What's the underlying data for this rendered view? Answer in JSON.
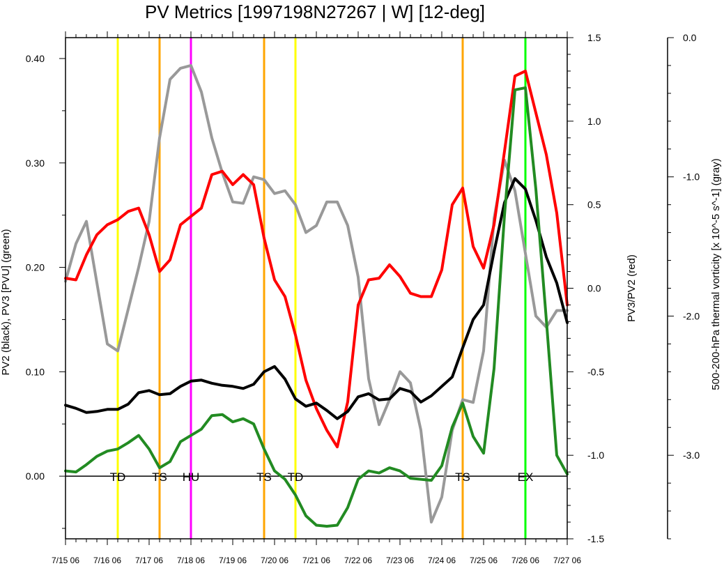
{
  "chart_data": {
    "type": "line",
    "title": "PV Metrics [1997198N27267 | W] [12-deg]",
    "x_tick_labels": [
      "7/15 06",
      "7/16 06",
      "7/17 06",
      "7/18 06",
      "7/19 06",
      "7/20 06",
      "7/21 06",
      "7/22 06",
      "7/23 06",
      "7/24 06",
      "7/25 06",
      "7/26 06",
      "7/27 06"
    ],
    "x_unit": "days from 7/15 06",
    "xlim": [
      0,
      12
    ],
    "axes": {
      "left": {
        "label": "PV2 (black), PV3 [PVU] (green)",
        "ylim": [
          -0.06,
          0.42
        ],
        "tick_values": [
          0.0,
          0.1,
          0.2,
          0.3,
          0.4
        ],
        "tick_labels": [
          "0.00",
          "0.10",
          "0.20",
          "0.30",
          "0.40"
        ]
      },
      "right": {
        "label": "PV3/PV2 (red)",
        "ylim": [
          -1.5,
          1.5
        ],
        "tick_values": [
          -1.5,
          -1.0,
          -0.5,
          0.0,
          0.5,
          1.0,
          1.5
        ],
        "tick_labels": [
          "-1.5",
          "-1.0",
          "-0.5",
          "0.0",
          "0.5",
          "1.0",
          "1.5"
        ]
      },
      "far_right": {
        "label": "500-200-hPa thermal vorticity [x 10^-5 s^-1] (gray)",
        "ylim": [
          -3.6,
          0.0
        ],
        "tick_values": [
          0.0,
          -1.0,
          -2.0,
          -3.0
        ],
        "tick_labels": [
          "0.0",
          "-1.0",
          "-2.0",
          "-3.0"
        ]
      }
    },
    "grid": false,
    "series": [
      {
        "color": "#999999",
        "axis": "far_right",
        "x": [
          0,
          0.25,
          0.5,
          1,
          1.25,
          1.5,
          1.75,
          2,
          2.25,
          2.5,
          2.75,
          3,
          3.25,
          3.5,
          3.75,
          4,
          4.25,
          4.5,
          4.75,
          5,
          5.25,
          5.5,
          5.75,
          6,
          6.25,
          6.5,
          6.75,
          7,
          7.25,
          7.5,
          7.75,
          8,
          8.25,
          8.5,
          8.75,
          9,
          9.25,
          9.5,
          9.75,
          10,
          10.25,
          10.5,
          10.75,
          11,
          11.25,
          11.5,
          11.75,
          12
        ],
        "values": [
          -1.75,
          -1.48,
          -1.32,
          -2.2,
          -2.25,
          -1.95,
          -1.65,
          -1.32,
          -0.72,
          -0.3,
          -0.22,
          -0.2,
          -0.39,
          -0.72,
          -0.97,
          -1.18,
          -1.19,
          -1.0,
          -1.02,
          -1.12,
          -1.1,
          -1.2,
          -1.4,
          -1.35,
          -1.18,
          -1.18,
          -1.35,
          -1.72,
          -2.45,
          -2.78,
          -2.6,
          -2.4,
          -2.48,
          -2.82,
          -3.48,
          -3.3,
          -2.82,
          -2.6,
          -2.62,
          -2.25,
          -1.3,
          -0.88,
          -1.1,
          -1.55,
          -2.0,
          -2.08,
          -1.96,
          -1.96
        ]
      },
      {
        "color": "#ff0000",
        "axis": "right",
        "x": [
          0,
          0.25,
          0.5,
          0.75,
          1,
          1.25,
          1.5,
          1.75,
          2,
          2.25,
          2.5,
          2.75,
          3,
          3.25,
          3.5,
          3.75,
          4,
          4.25,
          4.5,
          4.75,
          5,
          5.25,
          5.5,
          5.75,
          6,
          6.25,
          6.5,
          6.75,
          7,
          7.25,
          7.5,
          7.75,
          8,
          8.25,
          8.5,
          8.75,
          9,
          9.25,
          9.5,
          9.75,
          10,
          10.25,
          10.5,
          10.75,
          11,
          11.25,
          11.5,
          11.75,
          12
        ],
        "values": [
          0.06,
          0.05,
          0.2,
          0.32,
          0.38,
          0.41,
          0.46,
          0.48,
          0.32,
          0.1,
          0.17,
          0.38,
          0.43,
          0.48,
          0.68,
          0.7,
          0.62,
          0.68,
          0.62,
          0.3,
          0.05,
          -0.05,
          -0.28,
          -0.55,
          -0.72,
          -0.85,
          -0.95,
          -0.68,
          -0.1,
          0.05,
          0.06,
          0.14,
          0.07,
          -0.03,
          -0.05,
          -0.05,
          0.11,
          0.5,
          0.6,
          0.25,
          0.12,
          0.38,
          0.82,
          1.27,
          1.3,
          1.05,
          0.8,
          0.45,
          -0.1
        ]
      },
      {
        "color": "#000000",
        "axis": "left",
        "x": [
          0,
          0.25,
          0.5,
          0.75,
          1,
          1.25,
          1.5,
          1.75,
          2,
          2.25,
          2.5,
          2.75,
          3,
          3.25,
          3.5,
          3.75,
          4,
          4.25,
          4.5,
          4.75,
          5,
          5.25,
          5.5,
          5.75,
          6,
          6.25,
          6.5,
          6.75,
          7,
          7.25,
          7.5,
          7.75,
          8,
          8.25,
          8.5,
          8.75,
          9,
          9.25,
          9.5,
          9.75,
          10,
          10.25,
          10.5,
          10.75,
          11,
          11.25,
          11.5,
          11.75,
          12
        ],
        "values": [
          0.068,
          0.065,
          0.061,
          0.062,
          0.064,
          0.064,
          0.069,
          0.08,
          0.082,
          0.078,
          0.079,
          0.086,
          0.091,
          0.092,
          0.089,
          0.087,
          0.086,
          0.084,
          0.088,
          0.1,
          0.105,
          0.093,
          0.074,
          0.067,
          0.07,
          0.063,
          0.055,
          0.062,
          0.076,
          0.079,
          0.073,
          0.074,
          0.084,
          0.081,
          0.071,
          0.077,
          0.086,
          0.095,
          0.123,
          0.15,
          0.164,
          0.215,
          0.262,
          0.285,
          0.275,
          0.245,
          0.21,
          0.185,
          0.147
        ]
      },
      {
        "color": "#228b22",
        "axis": "left",
        "x": [
          0,
          0.25,
          0.5,
          0.75,
          1,
          1.25,
          1.5,
          1.75,
          2,
          2.25,
          2.5,
          2.75,
          3,
          3.25,
          3.5,
          3.75,
          4,
          4.25,
          4.5,
          4.75,
          5,
          5.25,
          5.5,
          5.75,
          6,
          6.25,
          6.5,
          6.75,
          7,
          7.25,
          7.5,
          7.75,
          8,
          8.25,
          8.5,
          8.75,
          9,
          9.25,
          9.5,
          9.75,
          10,
          10.25,
          10.5,
          10.75,
          11,
          11.25,
          11.5,
          11.75,
          12
        ],
        "values": [
          0.005,
          0.004,
          0.011,
          0.019,
          0.024,
          0.026,
          0.032,
          0.039,
          0.026,
          0.008,
          0.014,
          0.033,
          0.039,
          0.045,
          0.058,
          0.059,
          0.052,
          0.055,
          0.05,
          0.026,
          0.005,
          -0.003,
          -0.018,
          -0.038,
          -0.047,
          -0.048,
          -0.047,
          -0.03,
          -0.003,
          0.005,
          0.003,
          0.008,
          0.005,
          -0.002,
          -0.003,
          -0.004,
          0.01,
          0.047,
          0.07,
          0.038,
          0.022,
          0.103,
          0.25,
          0.37,
          0.372,
          0.275,
          0.15,
          0.02,
          0.002
        ]
      }
    ],
    "events": [
      {
        "x": 1.25,
        "label": "TD",
        "color": "#ffff00"
      },
      {
        "x": 2.25,
        "label": "TS",
        "color": "#ffa500"
      },
      {
        "x": 3.0,
        "label": "HU",
        "color": "#ff00ff"
      },
      {
        "x": 4.75,
        "label": "TS",
        "color": "#ffa500"
      },
      {
        "x": 5.5,
        "label": "TD",
        "color": "#ffff00"
      },
      {
        "x": 9.5,
        "label": "TS",
        "color": "#ffa500"
      },
      {
        "x": 11.0,
        "label": "EX",
        "color": "#00ff00"
      }
    ],
    "event_label_value": 0.0
  }
}
